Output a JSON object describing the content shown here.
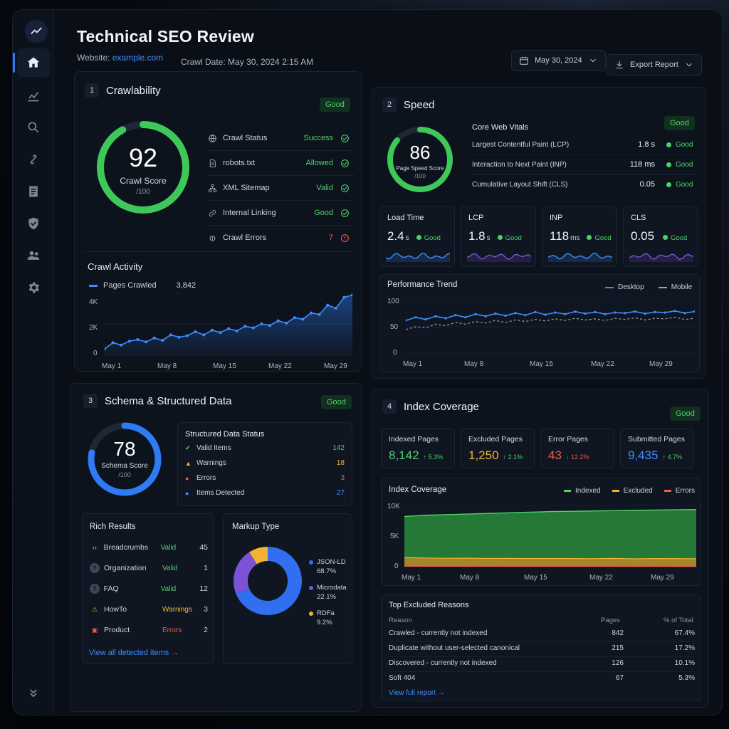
{
  "header": {
    "title": "Technical SEO Review",
    "website_label": "Website:",
    "website_value": "example.com",
    "crawl_date": "Crawl Date: May 30, 2024 2:15 AM",
    "date_button": "May 30, 2024",
    "export_button": "Export Report"
  },
  "sidebar": {
    "items": [
      {
        "icon": "home-icon",
        "active": true
      },
      {
        "icon": "chart-icon"
      },
      {
        "icon": "search-icon"
      },
      {
        "icon": "link-icon"
      },
      {
        "icon": "document-icon"
      },
      {
        "icon": "shield-icon"
      },
      {
        "icon": "users-icon"
      },
      {
        "icon": "gear-icon"
      }
    ]
  },
  "colors": {
    "good": "#4fd16a",
    "warn": "#f2a43a",
    "error": "#ef5a4a",
    "accent": "#3f8cff",
    "schema_ring": "#2f7bf5",
    "purple": "#7b52d8"
  },
  "crawlability": {
    "num": "1",
    "title": "Crawlability",
    "badge": "Good",
    "score": "92",
    "score_value": 92,
    "score_label": "Crawl Score",
    "score_max": "/100",
    "checks": [
      {
        "label": "Crawl Status",
        "value": "Success",
        "state": "ok",
        "icon": "globe-icon"
      },
      {
        "label": "robots.txt",
        "value": "Allowed",
        "state": "ok",
        "icon": "file-icon"
      },
      {
        "label": "XML Sitemap",
        "value": "Valid",
        "state": "ok",
        "icon": "sitemap-icon"
      },
      {
        "label": "Internal Linking",
        "value": "Good",
        "state": "ok",
        "icon": "link-icon"
      },
      {
        "label": "Crawl Errors",
        "value": "7",
        "state": "error",
        "icon": "bug-icon"
      }
    ],
    "activity": {
      "title": "Crawl Activity",
      "legend": "Pages Crawled",
      "legend_value": "3,842",
      "yticks": [
        "4K",
        "2K",
        "0"
      ],
      "xticks": [
        "May 1",
        "May 8",
        "May 15",
        "May 22",
        "May 29"
      ]
    }
  },
  "speed": {
    "num": "2",
    "title": "Speed",
    "badge": "Good",
    "score": "86",
    "score_value": 86,
    "score_label": "Page Speed Score",
    "score_max": "/100",
    "cwv_title": "Core Web Vitals",
    "cwv": [
      {
        "label": "Largest Contentful Paint (LCP)",
        "value": "1.8 s",
        "status": "Good"
      },
      {
        "label": "Interaction to Next Paint (INP)",
        "value": "118 ms",
        "status": "Good"
      },
      {
        "label": "Cumulative Layout Shift (CLS)",
        "value": "0.05",
        "status": "Good"
      }
    ],
    "kpis": [
      {
        "label": "Load Time",
        "value": "2.4",
        "unit": "s",
        "status": "Good",
        "color": "#3f8cff"
      },
      {
        "label": "LCP",
        "value": "1.8",
        "unit": "s",
        "status": "Good",
        "color": "#7b52d8"
      },
      {
        "label": "INP",
        "value": "118",
        "unit": "ms",
        "status": "Good",
        "color": "#3f8cff"
      },
      {
        "label": "CLS",
        "value": "0.05",
        "unit": "",
        "status": "Good",
        "color": "#7b52d8"
      }
    ],
    "trend": {
      "title": "Performance Trend",
      "legend_desktop": "Desktop",
      "legend_mobile": "Mobile",
      "yticks": [
        "100",
        "50",
        "0"
      ],
      "xticks": [
        "May 1",
        "May 8",
        "May 15",
        "May 22",
        "May 29"
      ]
    }
  },
  "schema": {
    "num": "3",
    "title": "Schema & Structured Data",
    "badge": "Good",
    "score": "78",
    "score_value": 78,
    "score_label": "Schema Score",
    "score_max": "/100",
    "status_title": "Structured Data Status",
    "status": [
      {
        "label": "Valid Items",
        "value": "142",
        "kind": "valid"
      },
      {
        "label": "Warnings",
        "value": "18",
        "kind": "warning"
      },
      {
        "label": "Errors",
        "value": "3",
        "kind": "error"
      },
      {
        "label": "Items Detected",
        "value": "27",
        "kind": "info"
      }
    ],
    "rich_title": "Rich Results",
    "rich": [
      {
        "label": "Breadcrumbs",
        "status": "Valid",
        "count": "45",
        "kind": "valid",
        "icon": "code-icon"
      },
      {
        "label": "Organization",
        "status": "Valid",
        "count": "1",
        "kind": "valid",
        "icon": "question-icon"
      },
      {
        "label": "FAQ",
        "status": "Valid",
        "count": "12",
        "kind": "valid",
        "icon": "question-icon"
      },
      {
        "label": "HowTo",
        "status": "Warnings",
        "count": "3",
        "kind": "warning",
        "icon": "warning-icon"
      },
      {
        "label": "Product",
        "status": "Errors",
        "count": "2",
        "kind": "error",
        "icon": "bag-icon"
      }
    ],
    "view_all": "View all detected items",
    "markup_title": "Markup Type",
    "markup": [
      {
        "label": "JSON-LD",
        "pct": "68.7%",
        "value": 68.7,
        "color": "#2f6ff0"
      },
      {
        "label": "Microdata",
        "pct": "22.1%",
        "value": 22.1,
        "color": "#7b52d8"
      },
      {
        "label": "RDFa",
        "pct": "9.2%",
        "value": 9.2,
        "color": "#f2b335"
      }
    ]
  },
  "index": {
    "num": "4",
    "title": "Index Coverage",
    "badge": "Good",
    "kpis": [
      {
        "label": "Indexed Pages",
        "value": "8,142",
        "delta": "5.3%",
        "dir": "up",
        "color": "#4fd16a"
      },
      {
        "label": "Excluded Pages",
        "value": "1,250",
        "delta": "2.1%",
        "dir": "up",
        "color": "#f2b335"
      },
      {
        "label": "Error Pages",
        "value": "43",
        "delta": "12.2%",
        "dir": "down",
        "color": "#ef5a4a"
      },
      {
        "label": "Submitted Pages",
        "value": "9,435",
        "delta": "4.7%",
        "dir": "up",
        "color": "#3f8cff"
      }
    ],
    "chart_title": "Index Coverage",
    "legend": [
      "Indexed",
      "Excluded",
      "Errors"
    ],
    "yticks": [
      "10K",
      "5K",
      "0"
    ],
    "xticks": [
      "May 1",
      "May 8",
      "May 15",
      "May 22",
      "May 29"
    ],
    "excluded_title": "Top Excluded Reasons",
    "table_headers": [
      "Reason",
      "Pages",
      "% of Total"
    ],
    "excluded": [
      {
        "reason": "Crawled - currently not indexed",
        "pages": "842",
        "pct": "67.4%"
      },
      {
        "reason": "Duplicate without user-selected canonical",
        "pages": "215",
        "pct": "17.2%"
      },
      {
        "reason": "Discovered - currently not indexed",
        "pages": "126",
        "pct": "10.1%"
      },
      {
        "reason": "Soft 404",
        "pages": "67",
        "pct": "5.3%"
      }
    ],
    "view_full": "View full report"
  },
  "chart_data": [
    {
      "type": "area",
      "title": "Crawl Activity",
      "series": [
        {
          "name": "Pages Crawled",
          "values": [
            400,
            800,
            650,
            900,
            1000,
            850,
            1100,
            950,
            1300,
            1150,
            1250,
            1500,
            1300,
            1600,
            1450,
            1700,
            1550,
            1850,
            1750,
            2000,
            1900,
            2200,
            2050,
            2400,
            2300,
            2700,
            2600,
            3200,
            3000,
            3700,
            3842
          ]
        }
      ],
      "x_range": [
        "May 1",
        "May 29"
      ],
      "ylim": [
        0,
        4000
      ]
    },
    {
      "type": "line",
      "title": "Performance Trend",
      "series": [
        {
          "name": "Desktop",
          "values": [
            62,
            68,
            64,
            70,
            66,
            72,
            68,
            74,
            70,
            75,
            71,
            76,
            72,
            78,
            73,
            77,
            74,
            79,
            75,
            78,
            74,
            77,
            76,
            79,
            75,
            78,
            77,
            80,
            76,
            79
          ]
        },
        {
          "name": "Mobile",
          "values": [
            45,
            50,
            48,
            55,
            52,
            58,
            55,
            60,
            57,
            62,
            58,
            63,
            60,
            64,
            61,
            65,
            62,
            66,
            63,
            65,
            62,
            66,
            64,
            67,
            63,
            66,
            65,
            68,
            64,
            66
          ]
        }
      ],
      "ylim": [
        0,
        100
      ]
    },
    {
      "type": "area",
      "title": "Index Coverage",
      "series": [
        {
          "name": "Indexed",
          "values": [
            7000,
            7200,
            7300,
            7400,
            7500,
            7600,
            7700,
            7800,
            7850,
            7900,
            7950,
            8000,
            8050,
            8100,
            8142
          ]
        },
        {
          "name": "Excluded",
          "values": [
            1400,
            1350,
            1300,
            1320,
            1280,
            1300,
            1260,
            1290,
            1270,
            1250,
            1300,
            1240,
            1270,
            1260,
            1250
          ]
        },
        {
          "name": "Errors",
          "values": [
            80,
            70,
            75,
            60,
            65,
            55,
            60,
            50,
            55,
            48,
            52,
            45,
            50,
            46,
            43
          ]
        }
      ],
      "ylim": [
        0,
        10000
      ]
    },
    {
      "type": "pie",
      "title": "Markup Type",
      "categories": [
        "JSON-LD",
        "Microdata",
        "RDFa"
      ],
      "values": [
        68.7,
        22.1,
        9.2
      ]
    }
  ]
}
